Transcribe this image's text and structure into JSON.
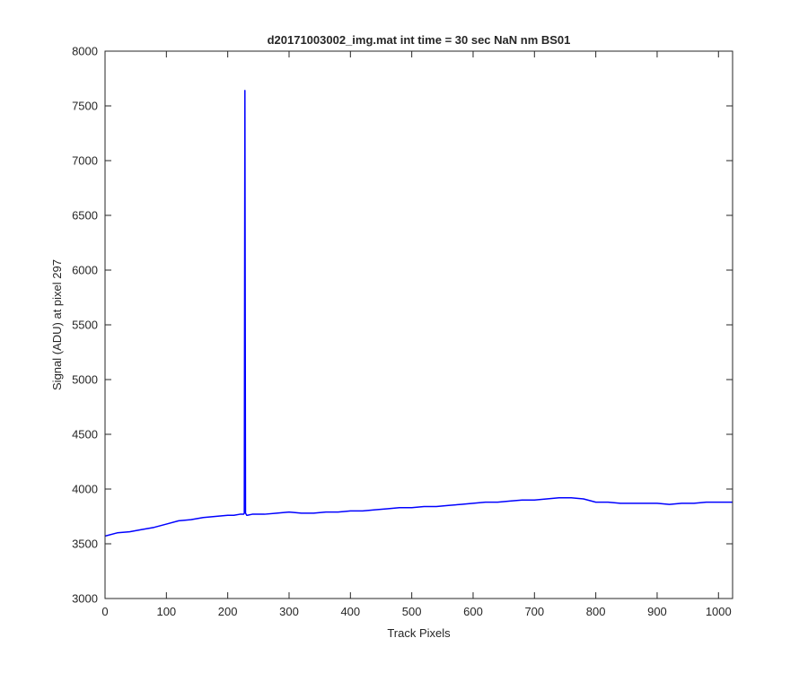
{
  "chart_data": {
    "type": "line",
    "title": "d20171003002_img.mat int time = 30 sec  NaN nm BS01",
    "xlabel": "Track Pixels",
    "ylabel": "Signal (ADU) at pixel 297",
    "xlim": [
      0,
      1023
    ],
    "ylim": [
      3000,
      8000
    ],
    "xticks": [
      0,
      100,
      200,
      300,
      400,
      500,
      600,
      700,
      800,
      900,
      1000
    ],
    "yticks": [
      3000,
      3500,
      4000,
      4500,
      5000,
      5500,
      6000,
      6500,
      7000,
      7500,
      8000
    ],
    "grid": false,
    "series": [
      {
        "color": "#0000ff",
        "x": [
          0,
          20,
          40,
          60,
          80,
          100,
          120,
          140,
          160,
          180,
          200,
          210,
          220,
          226,
          227,
          228,
          229,
          230,
          231,
          232,
          240,
          260,
          280,
          300,
          320,
          340,
          360,
          380,
          400,
          420,
          440,
          460,
          480,
          500,
          520,
          540,
          560,
          580,
          600,
          620,
          640,
          660,
          680,
          700,
          720,
          740,
          760,
          780,
          800,
          820,
          840,
          860,
          880,
          900,
          920,
          940,
          960,
          980,
          1000,
          1023
        ],
        "y": [
          3570,
          3600,
          3610,
          3630,
          3650,
          3680,
          3710,
          3720,
          3740,
          3750,
          3760,
          3760,
          3770,
          3770,
          3780,
          7640,
          3780,
          3770,
          3760,
          3760,
          3770,
          3770,
          3780,
          3790,
          3780,
          3780,
          3790,
          3790,
          3800,
          3800,
          3810,
          3820,
          3830,
          3830,
          3840,
          3840,
          3850,
          3860,
          3870,
          3880,
          3880,
          3890,
          3900,
          3900,
          3910,
          3920,
          3920,
          3910,
          3880,
          3880,
          3870,
          3870,
          3870,
          3870,
          3860,
          3870,
          3870,
          3880,
          3880,
          3880
        ]
      }
    ]
  }
}
